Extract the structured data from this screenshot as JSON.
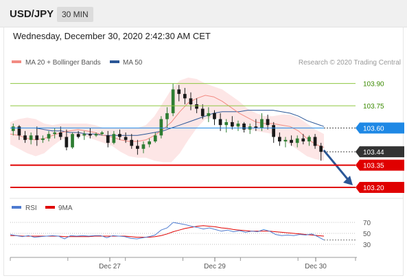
{
  "header": {
    "symbol": "USD/JPY",
    "timeframe": "30 MIN"
  },
  "datetime": "Wednesday, December 30, 2020 2:42:30 AM CET",
  "legend": {
    "ma20_label": "MA 20 + Bollinger Bands",
    "ma50_label": "MA 50",
    "credit": "Research © 2020 Trading Central",
    "rsi_label": "RSI",
    "ma9_label": "9MA"
  },
  "colors": {
    "bull": "#2e7d32",
    "bear": "#1a1a1a",
    "ma20": "#f28b82",
    "band_fill": "#fde2e2",
    "ma50": "#2b5797",
    "pivot": "#1e88e5",
    "support": "#e00000",
    "resistance": "#8dc63f",
    "rsi": "#4e7bd0",
    "rsi_ma": "#e00000"
  },
  "chart_data": [
    {
      "type": "line",
      "subtype": "candlestick",
      "title": "USD/JPY",
      "ylim": [
        103.14,
        104.0
      ],
      "x_ticks": [
        "Dec 27",
        "Dec 29",
        "Dec 30"
      ],
      "levels": [
        {
          "name": "resistance_2",
          "value": 103.9,
          "label": "103.90",
          "style": "green"
        },
        {
          "name": "resistance_1",
          "value": 103.75,
          "label": "103.75",
          "style": "green"
        },
        {
          "name": "pivot",
          "value": 103.6,
          "label": "103.60",
          "style": "blue"
        },
        {
          "name": "last_price",
          "value": 103.44,
          "label": "103.44",
          "style": "dark"
        },
        {
          "name": "support_1",
          "value": 103.35,
          "label": "103.35",
          "style": "red"
        },
        {
          "name": "support_2",
          "value": 103.2,
          "label": "103.20",
          "style": "red"
        }
      ],
      "ma20": [
        103.56,
        103.55,
        103.53,
        103.52,
        103.53,
        103.55,
        103.57,
        103.58,
        103.59,
        103.58,
        103.57,
        103.55,
        103.54,
        103.52,
        103.51,
        103.51,
        103.52,
        103.55,
        103.59,
        103.64,
        103.71,
        103.77,
        103.8,
        103.82,
        103.81,
        103.78,
        103.74,
        103.7,
        103.67,
        103.64,
        103.63,
        103.63,
        103.62,
        103.61,
        103.58,
        103.53,
        103.49,
        103.47
      ],
      "ma50": [
        103.6,
        103.6,
        103.6,
        103.6,
        103.59,
        103.58,
        103.58,
        103.57,
        103.57,
        103.56,
        103.56,
        103.55,
        103.55,
        103.55,
        103.55,
        103.55,
        103.56,
        103.57,
        103.58,
        103.6,
        103.62,
        103.64,
        103.66,
        103.68,
        103.7,
        103.71,
        103.71,
        103.71,
        103.72,
        103.72,
        103.72,
        103.72,
        103.71,
        103.7,
        103.68,
        103.65,
        103.63,
        103.61
      ],
      "band_upper": [
        103.64,
        103.66,
        103.67,
        103.66,
        103.63,
        103.62,
        103.63,
        103.63,
        103.63,
        103.63,
        103.62,
        103.6,
        103.6,
        103.6,
        103.6,
        103.6,
        103.62,
        103.68,
        103.77,
        103.86,
        103.92,
        103.94,
        103.93,
        103.9,
        103.88,
        103.86,
        103.82,
        103.78,
        103.73,
        103.7,
        103.68,
        103.68,
        103.69,
        103.69,
        103.67,
        103.63,
        103.59,
        103.56
      ],
      "band_lower": [
        103.49,
        103.46,
        103.43,
        103.41,
        103.43,
        103.48,
        103.52,
        103.54,
        103.55,
        103.54,
        103.52,
        103.5,
        103.48,
        103.44,
        103.41,
        103.4,
        103.4,
        103.38,
        103.37,
        103.37,
        103.43,
        103.52,
        103.6,
        103.66,
        103.67,
        103.66,
        103.63,
        103.6,
        103.59,
        103.58,
        103.57,
        103.56,
        103.52,
        103.49,
        103.45,
        103.41,
        103.39,
        103.38
      ],
      "candles": [
        {
          "o": 103.58,
          "h": 103.63,
          "l": 103.55,
          "c": 103.61
        },
        {
          "o": 103.61,
          "h": 103.62,
          "l": 103.52,
          "c": 103.55
        },
        {
          "o": 103.55,
          "h": 103.58,
          "l": 103.5,
          "c": 103.52
        },
        {
          "o": 103.52,
          "h": 103.57,
          "l": 103.49,
          "c": 103.55
        },
        {
          "o": 103.55,
          "h": 103.61,
          "l": 103.48,
          "c": 103.52
        },
        {
          "o": 103.52,
          "h": 103.55,
          "l": 103.5,
          "c": 103.53
        },
        {
          "o": 103.53,
          "h": 103.58,
          "l": 103.51,
          "c": 103.56
        },
        {
          "o": 103.56,
          "h": 103.6,
          "l": 103.53,
          "c": 103.57
        },
        {
          "o": 103.57,
          "h": 103.61,
          "l": 103.52,
          "c": 103.54
        },
        {
          "o": 103.54,
          "h": 103.59,
          "l": 103.45,
          "c": 103.47
        },
        {
          "o": 103.47,
          "h": 103.57,
          "l": 103.46,
          "c": 103.56
        },
        {
          "o": 103.56,
          "h": 103.58,
          "l": 103.53,
          "c": 103.54
        },
        {
          "o": 103.55,
          "h": 103.58,
          "l": 103.52,
          "c": 103.56
        },
        {
          "o": 103.56,
          "h": 103.6,
          "l": 103.53,
          "c": 103.55
        },
        {
          "o": 103.55,
          "h": 103.57,
          "l": 103.54,
          "c": 103.56
        },
        {
          "o": 103.56,
          "h": 103.58,
          "l": 103.55,
          "c": 103.57
        },
        {
          "o": 103.55,
          "h": 103.58,
          "l": 103.47,
          "c": 103.5
        },
        {
          "o": 103.5,
          "h": 103.58,
          "l": 103.49,
          "c": 103.56
        },
        {
          "o": 103.56,
          "h": 103.59,
          "l": 103.52,
          "c": 103.54
        },
        {
          "o": 103.54,
          "h": 103.57,
          "l": 103.5,
          "c": 103.52
        },
        {
          "o": 103.52,
          "h": 103.56,
          "l": 103.46,
          "c": 103.48
        },
        {
          "o": 103.48,
          "h": 103.52,
          "l": 103.42,
          "c": 103.46
        },
        {
          "o": 103.46,
          "h": 103.51,
          "l": 103.43,
          "c": 103.49
        },
        {
          "o": 103.49,
          "h": 103.53,
          "l": 103.47,
          "c": 103.51
        },
        {
          "o": 103.51,
          "h": 103.57,
          "l": 103.5,
          "c": 103.55
        },
        {
          "o": 103.55,
          "h": 103.68,
          "l": 103.53,
          "c": 103.66
        },
        {
          "o": 103.66,
          "h": 103.74,
          "l": 103.6,
          "c": 103.7
        },
        {
          "o": 103.7,
          "h": 103.9,
          "l": 103.68,
          "c": 103.86
        },
        {
          "o": 103.86,
          "h": 103.89,
          "l": 103.78,
          "c": 103.83
        },
        {
          "o": 103.83,
          "h": 103.87,
          "l": 103.76,
          "c": 103.8
        },
        {
          "o": 103.8,
          "h": 103.84,
          "l": 103.72,
          "c": 103.76
        },
        {
          "o": 103.76,
          "h": 103.8,
          "l": 103.7,
          "c": 103.73
        },
        {
          "o": 103.73,
          "h": 103.76,
          "l": 103.66,
          "c": 103.68
        },
        {
          "o": 103.68,
          "h": 103.74,
          "l": 103.64,
          "c": 103.7
        },
        {
          "o": 103.7,
          "h": 103.72,
          "l": 103.62,
          "c": 103.66
        },
        {
          "o": 103.66,
          "h": 103.7,
          "l": 103.58,
          "c": 103.62
        },
        {
          "o": 103.62,
          "h": 103.66,
          "l": 103.57,
          "c": 103.64
        },
        {
          "o": 103.64,
          "h": 103.68,
          "l": 103.59,
          "c": 103.61
        },
        {
          "o": 103.61,
          "h": 103.65,
          "l": 103.58,
          "c": 103.63
        },
        {
          "o": 103.63,
          "h": 103.64,
          "l": 103.57,
          "c": 103.59
        },
        {
          "o": 103.59,
          "h": 103.63,
          "l": 103.56,
          "c": 103.61
        },
        {
          "o": 103.61,
          "h": 103.66,
          "l": 103.58,
          "c": 103.6
        },
        {
          "o": 103.6,
          "h": 103.7,
          "l": 103.58,
          "c": 103.66
        },
        {
          "o": 103.66,
          "h": 103.69,
          "l": 103.59,
          "c": 103.62
        },
        {
          "o": 103.62,
          "h": 103.64,
          "l": 103.5,
          "c": 103.54
        },
        {
          "o": 103.54,
          "h": 103.57,
          "l": 103.48,
          "c": 103.51
        },
        {
          "o": 103.51,
          "h": 103.54,
          "l": 103.47,
          "c": 103.52
        },
        {
          "o": 103.52,
          "h": 103.55,
          "l": 103.48,
          "c": 103.5
        },
        {
          "o": 103.5,
          "h": 103.55,
          "l": 103.47,
          "c": 103.53
        },
        {
          "o": 103.53,
          "h": 103.56,
          "l": 103.49,
          "c": 103.51
        },
        {
          "o": 103.51,
          "h": 103.55,
          "l": 103.48,
          "c": 103.54
        },
        {
          "o": 103.54,
          "h": 103.56,
          "l": 103.46,
          "c": 103.48
        },
        {
          "o": 103.48,
          "h": 103.5,
          "l": 103.38,
          "c": 103.44
        }
      ],
      "projection_arrow": {
        "from": 103.45,
        "to": 103.2
      }
    },
    {
      "type": "line",
      "title": "RSI",
      "ylim": [
        20,
        80
      ],
      "y_ticks": [
        70,
        50,
        30
      ],
      "series": [
        {
          "name": "RSI",
          "values": [
            48,
            46,
            44,
            46,
            43,
            44,
            45,
            46,
            45,
            40,
            46,
            45,
            46,
            45,
            46,
            46,
            42,
            46,
            45,
            44,
            41,
            40,
            42,
            44,
            47,
            56,
            60,
            70,
            68,
            66,
            63,
            61,
            58,
            60,
            57,
            54,
            56,
            53,
            55,
            52,
            54,
            53,
            57,
            54,
            48,
            46,
            47,
            46,
            48,
            47,
            49,
            44,
            38
          ]
        },
        {
          "name": "9MA",
          "values": [
            46,
            46,
            45,
            45,
            45,
            45,
            45,
            45,
            45,
            44,
            44,
            44,
            44,
            44,
            45,
            45,
            45,
            45,
            45,
            45,
            44,
            43,
            43,
            43,
            44,
            46,
            49,
            53,
            56,
            59,
            61,
            63,
            64,
            63,
            62,
            60,
            59,
            57,
            56,
            55,
            54,
            54,
            54,
            54,
            53,
            52,
            51,
            50,
            49,
            48,
            47,
            46,
            45
          ]
        }
      ]
    }
  ]
}
